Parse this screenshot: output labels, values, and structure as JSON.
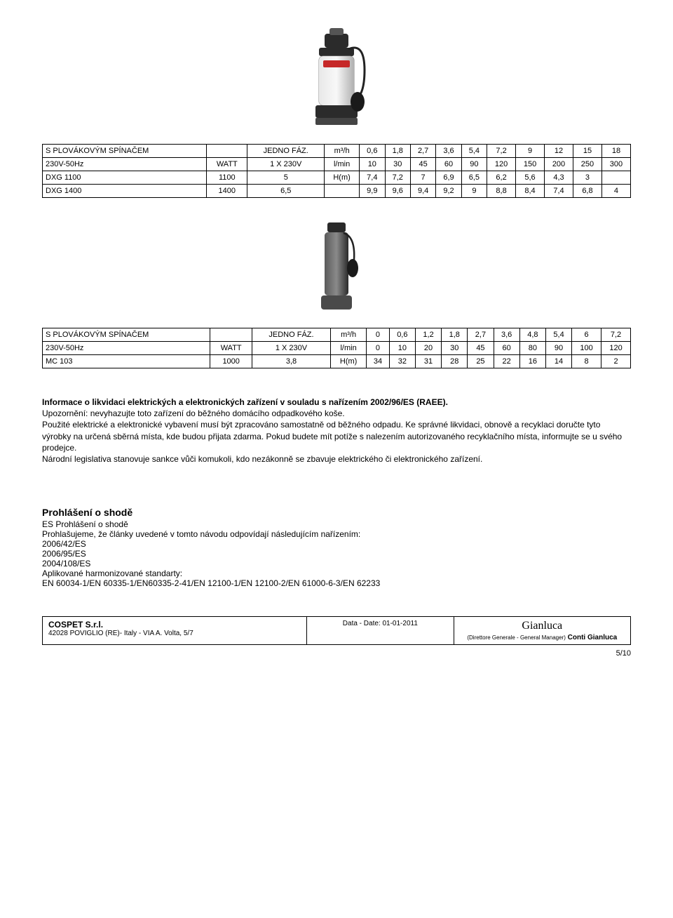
{
  "pump1": {
    "image_colors": {
      "body": "#c0c0c0",
      "top": "#2b2b2b",
      "accent": "#c62828"
    }
  },
  "table1": {
    "header_row1": [
      "S PLOVÁKOVÝM SPÍNAČEM",
      "",
      "JEDNO FÁZ.",
      "m³/h",
      "0,6",
      "1,8",
      "2,7",
      "3,6",
      "5,4",
      "7,2",
      "9",
      "12",
      "15",
      "18"
    ],
    "header_row2": [
      "230V-50Hz",
      "WATT",
      "1 X 230V",
      "l/min",
      "10",
      "30",
      "45",
      "60",
      "90",
      "120",
      "150",
      "200",
      "250",
      "300"
    ],
    "rows": [
      [
        "DXG 1100",
        "1100",
        "5",
        "H(m)",
        "7,4",
        "7,2",
        "7",
        "6,9",
        "6,5",
        "6,2",
        "5,6",
        "4,3",
        "3",
        ""
      ],
      [
        "DXG 1400",
        "1400",
        "6,5",
        "",
        "9,9",
        "9,6",
        "9,4",
        "9,2",
        "9",
        "8,8",
        "8,4",
        "7,4",
        "6,8",
        "4"
      ]
    ]
  },
  "pump2": {
    "image_colors": {
      "body": "#3a3a3a",
      "base": "#5a5a5a"
    }
  },
  "table2": {
    "header_row1": [
      "S PLOVÁKOVÝM SPÍNAČEM",
      "",
      "JEDNO FÁZ.",
      "m³/h",
      "0",
      "0,6",
      "1,2",
      "1,8",
      "2,7",
      "3,6",
      "4,8",
      "5,4",
      "6",
      "7,2"
    ],
    "header_row2": [
      "230V-50Hz",
      "WATT",
      "1 X 230V",
      "l/min",
      "0",
      "10",
      "20",
      "30",
      "45",
      "60",
      "80",
      "90",
      "100",
      "120"
    ],
    "rows": [
      [
        "MC 103",
        "1000",
        "3,8",
        "H(m)",
        "34",
        "32",
        "31",
        "28",
        "25",
        "22",
        "16",
        "14",
        "8",
        "2"
      ]
    ]
  },
  "disposal": {
    "title": "Informace o likvidaci elektrických a elektronických zařízení v souladu s nařízením 2002/96/ES (RAEE).",
    "p1": "Upozornění: nevyhazujte toto zařízení do běžného domácího odpadkového koše.",
    "p2": "Použité elektrické a elektronické vybavení musí být zpracováno samostatně od běžného odpadu. Ke správné likvidaci, obnově a recyklaci doručte tyto výrobky na určená sběrná místa, kde budou přijata zdarma. Pokud budete mít potíže s nalezením autorizovaného recyklačního místa, informujte se u svého prodejce.",
    "p3": "Národní legislativa stanovuje sankce vůči komukoli, kdo nezákonně se zbavuje elektrického či elektronického zařízení."
  },
  "declaration": {
    "heading": "Prohlášení o shodě",
    "sub": "ES Prohlášení o shodě",
    "intro": "Prohlašujeme, že články uvedené v tomto návodu odpovídají následujícím nařízením:",
    "dirs": [
      "2006/42/ES",
      "2006/95/ES",
      "2004/108/ES"
    ],
    "std_label": "Aplikované harmonizované standarty:",
    "std": "EN 60034-1/EN 60335-1/EN60335-2-41/EN 12100-1/EN 12100-2/EN 61000-6-3/EN 62233"
  },
  "footer": {
    "company": "COSPET S.r.l.",
    "address": "42028 POVIGLIO (RE)- Italy - VIA A. Volta, 5/7",
    "date_label": "Data - Date: 01-01-2011",
    "sig_name": "Conti Gianluca",
    "sig_role": "(Direttore Generale - General Manager)"
  },
  "page_number": "5/10"
}
